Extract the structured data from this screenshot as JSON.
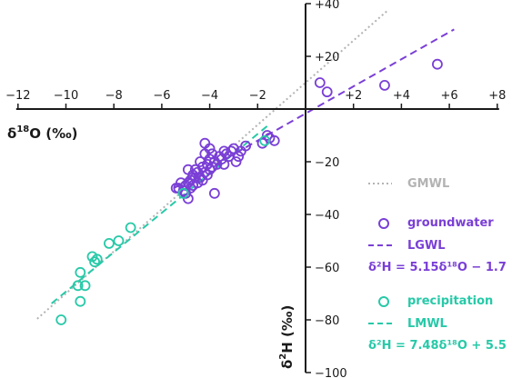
{
  "chart_data": {
    "type": "scatter",
    "xlabel_main": "δ",
    "xlabel_sup": "18",
    "xlabel_rest": "O (‰)",
    "ylabel_main": "δ",
    "ylabel_sup": "2",
    "ylabel_rest": "H (‰)",
    "xlim": [
      -12,
      8
    ],
    "ylim": [
      -100,
      40
    ],
    "x_ticks": [
      {
        "value": -12,
        "label": "−12"
      },
      {
        "value": -10,
        "label": "−10"
      },
      {
        "value": -8,
        "label": "−8"
      },
      {
        "value": -6,
        "label": "−6"
      },
      {
        "value": -4,
        "label": "−4"
      },
      {
        "value": -2,
        "label": "−2"
      },
      {
        "value": 2,
        "label": "+2"
      },
      {
        "value": 4,
        "label": "+4"
      },
      {
        "value": 6,
        "label": "+6"
      },
      {
        "value": 8,
        "label": "+8"
      }
    ],
    "y_ticks": [
      {
        "value": 40,
        "label": "+40"
      },
      {
        "value": 20,
        "label": "+20"
      },
      {
        "value": -20,
        "label": "−20"
      },
      {
        "value": -40,
        "label": "−40"
      },
      {
        "value": -60,
        "label": "−60"
      },
      {
        "value": -80,
        "label": "−80"
      },
      {
        "value": -100,
        "label": "−100"
      }
    ],
    "colors": {
      "gmwl": "#b3b3b3",
      "groundwater": "#7a3fd6",
      "precipitation": "#27c9a8",
      "axis": "#1a1a1a"
    },
    "legend": {
      "position": "bottom-right",
      "gmwl_label": "GMWL",
      "groundwater_label": "groundwater",
      "lgwl_label": "LGWL",
      "lgwl_eq": "δ²H = 5.15δ¹⁸O  − 1.7",
      "precipitation_label": "precipitation",
      "lmwl_label": "LMWL",
      "lmwl_eq": "δ²H = 7.48δ¹⁸O  + 5.5"
    },
    "lines": [
      {
        "name": "GMWL",
        "slope": 8,
        "intercept": 10,
        "x_range": [
          -11.2,
          3.4
        ],
        "style": "dotted",
        "color_key": "gmwl"
      },
      {
        "name": "LGWL",
        "slope": 5.15,
        "intercept": -1.7,
        "x_range": [
          -5.5,
          6.2
        ],
        "style": "dashed",
        "color_key": "groundwater"
      },
      {
        "name": "LMWL",
        "slope": 7.48,
        "intercept": 5.5,
        "x_range": [
          -10.6,
          -1.5
        ],
        "style": "dashed",
        "color_key": "precipitation"
      }
    ],
    "series": [
      {
        "name": "groundwater",
        "color_key": "groundwater",
        "points": [
          [
            0.6,
            10
          ],
          [
            0.9,
            6.5
          ],
          [
            3.3,
            9
          ],
          [
            5.5,
            17
          ],
          [
            -1.5,
            -11
          ],
          [
            -1.3,
            -12
          ],
          [
            -1.6,
            -10
          ],
          [
            -1.8,
            -13
          ],
          [
            -2.5,
            -14
          ],
          [
            -2.7,
            -16
          ],
          [
            -2.8,
            -18
          ],
          [
            -2.9,
            -20
          ],
          [
            -3.0,
            -15
          ],
          [
            -3.1,
            -16
          ],
          [
            -3.2,
            -18
          ],
          [
            -3.3,
            -17
          ],
          [
            -3.4,
            -21
          ],
          [
            -3.4,
            -16
          ],
          [
            -3.5,
            -19
          ],
          [
            -3.6,
            -18
          ],
          [
            -3.7,
            -21
          ],
          [
            -3.8,
            -20
          ],
          [
            -3.9,
            -22
          ],
          [
            -3.9,
            -17
          ],
          [
            -4.0,
            -23
          ],
          [
            -4.0,
            -19
          ],
          [
            -4.1,
            -25
          ],
          [
            -4.1,
            -21
          ],
          [
            -4.2,
            -24
          ],
          [
            -4.2,
            -17
          ],
          [
            -4.3,
            -27
          ],
          [
            -4.3,
            -22
          ],
          [
            -4.4,
            -26
          ],
          [
            -4.4,
            -20
          ],
          [
            -4.5,
            -24
          ],
          [
            -4.5,
            -28
          ],
          [
            -4.6,
            -23
          ],
          [
            -4.6,
            -26
          ],
          [
            -4.7,
            -29
          ],
          [
            -4.7,
            -25
          ],
          [
            -4.8,
            -30
          ],
          [
            -4.8,
            -27
          ],
          [
            -4.9,
            -28
          ],
          [
            -4.9,
            -23
          ],
          [
            -5.0,
            -32
          ],
          [
            -5.0,
            -29
          ],
          [
            -5.1,
            -31
          ],
          [
            -5.2,
            -28
          ],
          [
            -5.3,
            -30
          ],
          [
            -5.4,
            -30
          ],
          [
            -4.9,
            -34
          ],
          [
            -3.8,
            -32
          ],
          [
            -4.0,
            -15
          ],
          [
            -4.2,
            -13
          ]
        ]
      },
      {
        "name": "precipitation",
        "color_key": "precipitation",
        "points": [
          [
            -10.2,
            -80
          ],
          [
            -9.4,
            -73
          ],
          [
            -9.5,
            -67
          ],
          [
            -9.2,
            -67
          ],
          [
            -9.4,
            -62
          ],
          [
            -8.8,
            -58
          ],
          [
            -8.9,
            -56
          ],
          [
            -8.7,
            -57
          ],
          [
            -8.2,
            -51
          ],
          [
            -7.8,
            -50
          ],
          [
            -7.3,
            -45
          ],
          [
            -5.1,
            -32
          ],
          [
            -1.7,
            -12
          ]
        ]
      }
    ]
  }
}
